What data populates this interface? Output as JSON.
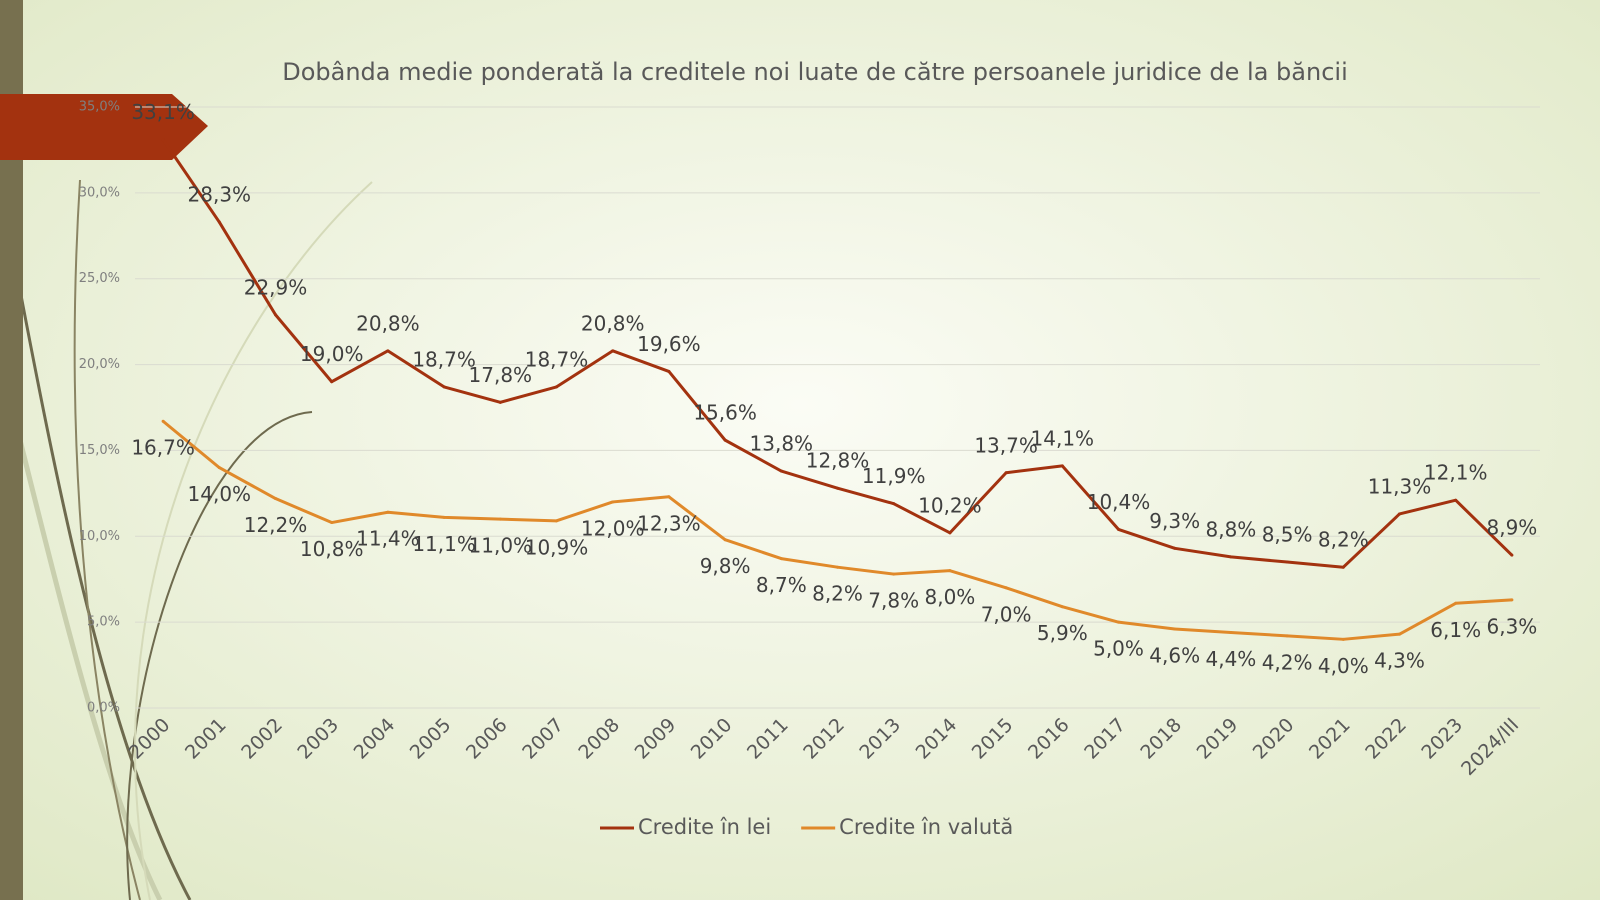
{
  "chart_data": {
    "type": "line",
    "title": "Dobânda medie ponderată la creditele noi luate de către persoanele juridice de la băncii",
    "categories": [
      "2000",
      "2001",
      "2002",
      "2003",
      "2004",
      "2005",
      "2006",
      "2007",
      "2008",
      "2009",
      "2010",
      "2011",
      "2012",
      "2013",
      "2014",
      "2015",
      "2016",
      "2017",
      "2018",
      "2019",
      "2020",
      "2021",
      "2022",
      "2023",
      "2024/III"
    ],
    "series": [
      {
        "name": "Credite în lei",
        "color": "#a3320f",
        "values": [
          33.1,
          28.3,
          22.9,
          19.0,
          20.8,
          18.7,
          17.8,
          18.7,
          20.8,
          19.6,
          15.6,
          13.8,
          12.8,
          11.9,
          10.2,
          13.7,
          14.1,
          10.4,
          9.3,
          8.8,
          8.5,
          8.2,
          11.3,
          12.1,
          8.9
        ],
        "value_labels": [
          "33,1%",
          "28,3%",
          "22,9%",
          "19,0%",
          "20,8%",
          "18,7%",
          "17,8%",
          "18,7%",
          "20,8%",
          "19,6%",
          "15,6%",
          "13,8%",
          "12,8%",
          "11,9%",
          "10,2%",
          "13,7%",
          "14,1%",
          "10,4%",
          "9,3%",
          "8,8%",
          "8,5%",
          "8,2%",
          "11,3%",
          "12,1%",
          "8,9%"
        ]
      },
      {
        "name": "Credite în valută",
        "color": "#e0892a",
        "values": [
          16.7,
          14.0,
          12.2,
          10.8,
          11.4,
          11.1,
          11.0,
          10.9,
          12.0,
          12.3,
          9.8,
          8.7,
          8.2,
          7.8,
          8.0,
          7.0,
          5.9,
          5.0,
          4.6,
          4.4,
          4.2,
          4.0,
          4.3,
          6.1,
          6.3
        ],
        "value_labels": [
          "16,7%",
          "14,0%",
          "12,2%",
          "10,8%",
          "11,4%",
          "11,1%",
          "11,0%",
          "10,9%",
          "12,0%",
          "12,3%",
          "9,8%",
          "8,7%",
          "8,2%",
          "7,8%",
          "8,0%",
          "7,0%",
          "5,9%",
          "5,0%",
          "4,6%",
          "4,4%",
          "4,2%",
          "4,0%",
          "4,3%",
          "6,1%",
          "6,3%"
        ]
      }
    ],
    "ylim": [
      0,
      35
    ],
    "yticks": [
      {
        "value": 0,
        "label": "0,0%"
      },
      {
        "value": 5,
        "label": "5,0%"
      },
      {
        "value": 10,
        "label": "10,0%"
      },
      {
        "value": 15,
        "label": "15,0%"
      },
      {
        "value": 20,
        "label": "20,0%"
      },
      {
        "value": 25,
        "label": "25,0%"
      },
      {
        "value": 30,
        "label": "30,0%"
      },
      {
        "value": 35,
        "label": "35,0%"
      }
    ],
    "grid": true,
    "legend": "bottom"
  }
}
